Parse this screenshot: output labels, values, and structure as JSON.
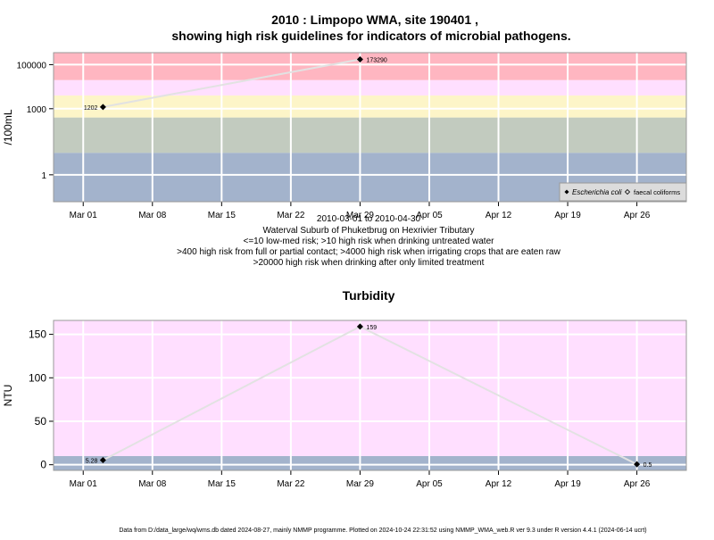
{
  "title_line1": "2010 : Limpopo WMA, site 190401 ,",
  "title_line2": "showing high risk guidelines for indicators of microbial pathogens.",
  "subtitle_lines": [
    "2010-03-01 to 2010-04-30",
    "Waterval Suburb of Phuketbrug on Hexrivier Tributary",
    "<=10 low-med risk; >10 high risk when drinking untreated water",
    ">400 high risk from full or partial contact; >4000 high risk when irrigating crops that are eaten raw",
    ">20000 high risk when drinking after only limited treatment"
  ],
  "footer": "Data from D:/data_large/wq/wms.db dated 2024-08-27, mainly NMMP programme. Plotted on 2024-10-24 22:31:52 using NMMP_WMA_web.R ver 9.3 under R version 4.4.1 (2024-06-14 ucrt)",
  "colors": {
    "band_blue": "#a3b3cc",
    "band_greygreen": "#c2cbbf",
    "band_yellow": "#fdf5c8",
    "band_pink": "#ffdfff",
    "band_red": "#ffb6c1",
    "line": "#e2e2e2",
    "grid": "#ffffff",
    "frame": "#999999"
  },
  "chart_data": [
    {
      "type": "line",
      "title": "",
      "xlabel": "",
      "ylabel": "/100mL",
      "y_scale": "log",
      "x_ticks": [
        "Mar 01",
        "Mar 08",
        "Mar 15",
        "Mar 22",
        "Mar 29",
        "Apr 05",
        "Apr 12",
        "Apr 19",
        "Apr 26"
      ],
      "y_ticks": [
        "1",
        "1000",
        "100000"
      ],
      "xlim": [
        "2010-02-26",
        "2010-05-01"
      ],
      "ylim": [
        0.06,
        350000
      ],
      "grid": true,
      "legend_position": "bottom-right",
      "legend": [
        "Escherichia coli",
        "faecal coliforms"
      ],
      "risk_bands": [
        {
          "from": 0.06,
          "to": 10,
          "color": "#a3b3cc"
        },
        {
          "from": 10,
          "to": 400,
          "color": "#c2cbbf"
        },
        {
          "from": 400,
          "to": 4000,
          "color": "#fdf5c8"
        },
        {
          "from": 4000,
          "to": 20000,
          "color": "#ffdfff"
        },
        {
          "from": 20000,
          "to": 350000,
          "color": "#ffb6c1"
        }
      ],
      "series": [
        {
          "name": "Escherichia coli",
          "points": [
            {
              "x": "2010-03-03",
              "y": 1202,
              "label": "1202"
            },
            {
              "x": "2010-03-29",
              "y": 173290,
              "label": "173290"
            }
          ]
        }
      ]
    },
    {
      "type": "line",
      "title": "Turbidity",
      "xlabel": "",
      "ylabel": "NTU",
      "y_scale": "linear",
      "x_ticks": [
        "Mar 01",
        "Mar 08",
        "Mar 15",
        "Mar 22",
        "Mar 29",
        "Apr 05",
        "Apr 12",
        "Apr 19",
        "Apr 26"
      ],
      "y_ticks": [
        "0",
        "50",
        "100",
        "150"
      ],
      "xlim": [
        "2010-02-26",
        "2010-05-01"
      ],
      "ylim": [
        -6.5,
        166
      ],
      "grid": true,
      "risk_bands": [
        {
          "from": -6.5,
          "to": 10,
          "color": "#a3b3cc"
        },
        {
          "from": 10,
          "to": 166,
          "color": "#ffdfff"
        }
      ],
      "series": [
        {
          "name": "",
          "points": [
            {
              "x": "2010-03-03",
              "y": 5.28,
              "label": "5.28"
            },
            {
              "x": "2010-03-29",
              "y": 159,
              "label": "159"
            },
            {
              "x": "2010-04-26",
              "y": 0.5,
              "label": "0.5"
            }
          ]
        }
      ]
    }
  ]
}
